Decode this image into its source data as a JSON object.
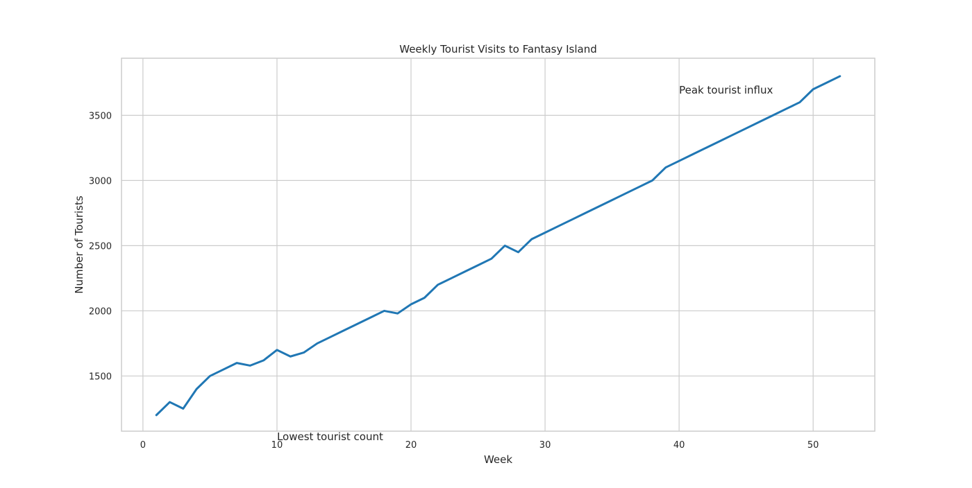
{
  "chart_data": {
    "type": "line",
    "title": "Weekly Tourist Visits to Fantasy Island",
    "xlabel": "Week",
    "ylabel": "Number of Tourists",
    "xlim": [
      -1.6,
      54.6
    ],
    "ylim": [
      1077,
      3938
    ],
    "x_ticks": [
      0,
      10,
      20,
      30,
      40,
      50
    ],
    "y_ticks": [
      1500,
      2000,
      2500,
      3000,
      3500
    ],
    "grid": true,
    "line_color": "#2077b4",
    "series": [
      {
        "x": [
          1,
          2,
          3,
          4,
          5,
          6,
          7,
          8,
          9,
          10,
          11,
          12,
          13,
          14,
          15,
          16,
          17,
          18,
          19,
          20,
          21,
          22,
          23,
          24,
          25,
          26,
          27,
          28,
          29,
          30,
          31,
          32,
          33,
          34,
          35,
          36,
          37,
          38,
          39,
          40,
          41,
          42,
          43,
          44,
          45,
          46,
          47,
          48,
          49,
          50,
          51,
          52
        ],
        "values": [
          1200,
          1300,
          1250,
          1400,
          1500,
          1550,
          1600,
          1580,
          1620,
          1700,
          1650,
          1680,
          1750,
          1800,
          1850,
          1900,
          1950,
          2000,
          1980,
          2050,
          2100,
          2200,
          2250,
          2300,
          2350,
          2400,
          2500,
          2450,
          2550,
          2600,
          2650,
          2700,
          2750,
          2800,
          2850,
          2900,
          2950,
          3000,
          3100,
          3150,
          3200,
          3250,
          3300,
          3350,
          3400,
          3450,
          3500,
          3550,
          3600,
          3700,
          3750,
          3800
        ]
      }
    ],
    "annotations": [
      {
        "text": "Peak tourist influx",
        "x": 40,
        "y": 3700
      },
      {
        "text": "Lowest tourist count",
        "x": 10,
        "y": 1040
      }
    ]
  }
}
